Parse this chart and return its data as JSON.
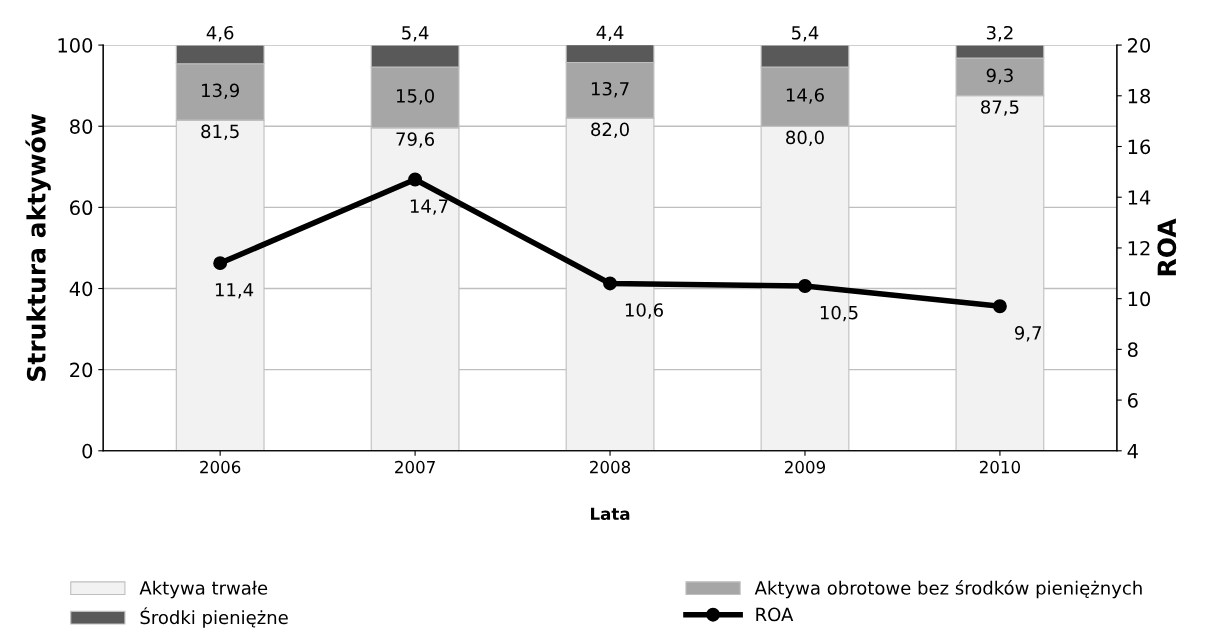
{
  "chart_data": {
    "type": "bar",
    "stacked": true,
    "xlabel": "Lata",
    "ylabel": "Struktura aktywów",
    "y2label": "ROA",
    "categories": [
      "2006",
      "2007",
      "2008",
      "2009",
      "2010"
    ],
    "series": [
      {
        "name": "Aktywa trwałe",
        "color": "#f2f2f2",
        "values": [
          81.5,
          79.6,
          82.0,
          80.0,
          87.5
        ],
        "value_labels": [
          "81,5",
          "79,6",
          "82,0",
          "80,0",
          "87,5"
        ]
      },
      {
        "name": "Aktywa obrotowe bez środków pieniężnych",
        "color": "#a6a6a6",
        "values": [
          13.9,
          15.0,
          13.7,
          14.6,
          9.3
        ],
        "value_labels": [
          "13,9",
          "15,0",
          "13,7",
          "14,6",
          "9,3"
        ]
      },
      {
        "name": "Środki pieniężne",
        "color": "#595959",
        "values": [
          4.6,
          5.4,
          4.4,
          5.4,
          3.2
        ],
        "value_labels": [
          "4,6",
          "5,4",
          "4,4",
          "5,4",
          "3,2"
        ]
      },
      {
        "name": "ROA",
        "type": "line",
        "axis": "y2",
        "color": "#000000",
        "marker": "circle",
        "values": [
          11.4,
          14.7,
          10.6,
          10.5,
          9.7
        ],
        "value_labels": [
          "11,4",
          "14,7",
          "10,6",
          "10,5",
          "9,7"
        ]
      }
    ],
    "ylim": [
      0,
      100
    ],
    "yticks": [
      0,
      20,
      40,
      60,
      80,
      100
    ],
    "y2lim": [
      4,
      20
    ],
    "y2ticks": [
      4,
      6,
      8,
      10,
      12,
      14,
      16,
      18,
      20
    ],
    "grid": "y",
    "legend": "bottom"
  }
}
